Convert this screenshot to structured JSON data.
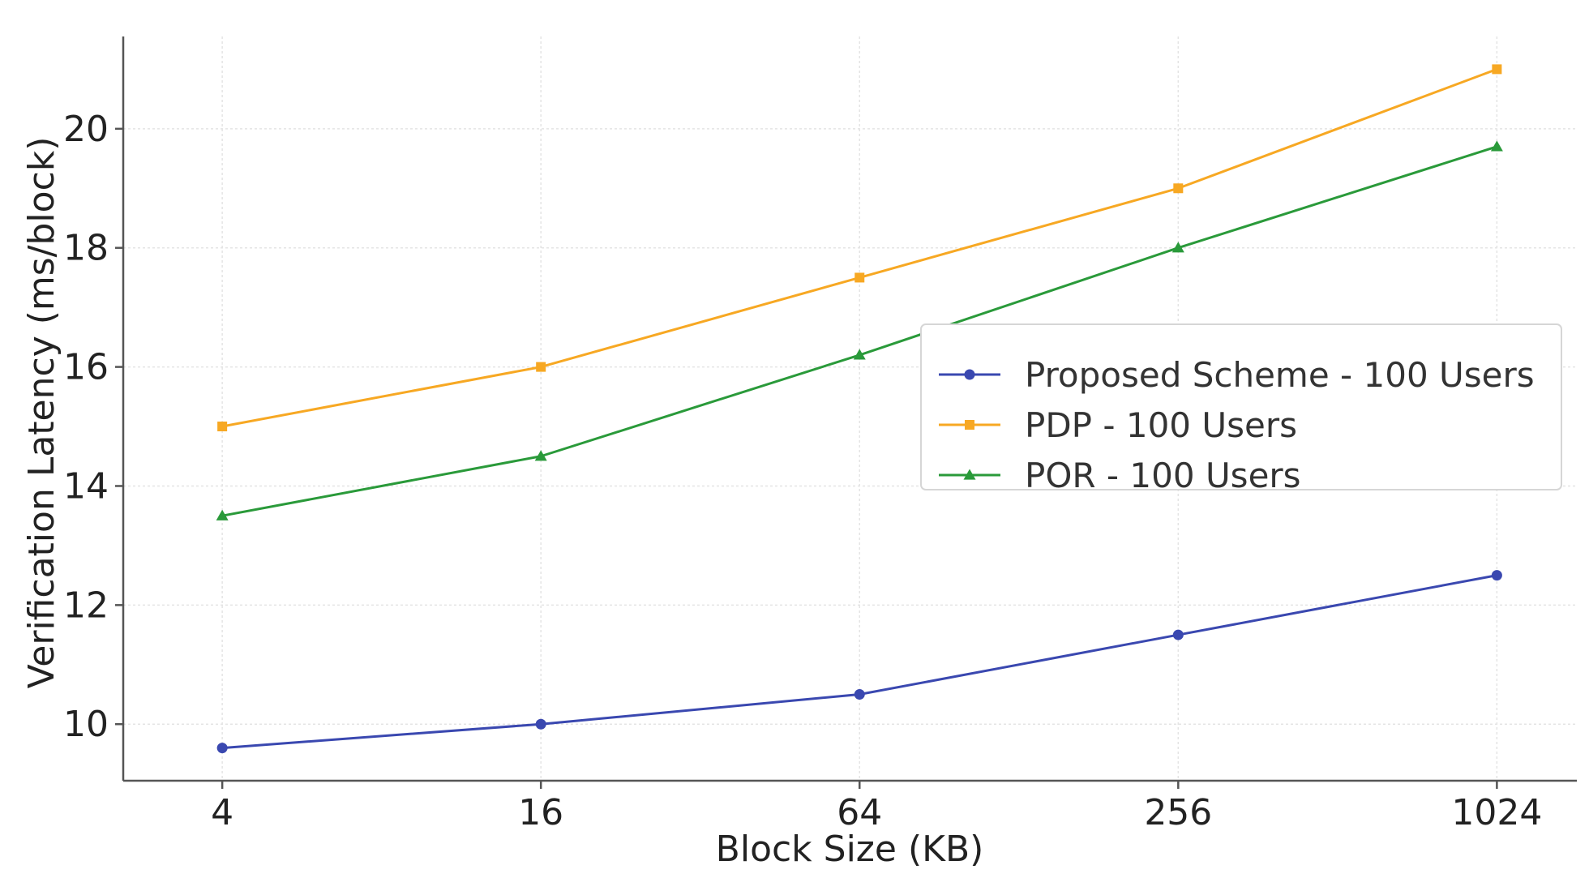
{
  "chart_data": {
    "type": "line",
    "title": "",
    "xlabel": "Block Size (KB)",
    "ylabel": "Verification Latency (ms/block)",
    "x": [
      4,
      16,
      64,
      256,
      1024
    ],
    "xticks": [
      {
        "value": 4,
        "label": "4"
      },
      {
        "value": 16,
        "label": "16"
      },
      {
        "value": 64,
        "label": "64"
      },
      {
        "value": 256,
        "label": "256"
      },
      {
        "value": 1024,
        "label": "1024"
      }
    ],
    "xscale": "log2",
    "xlim": [
      2.6,
      1450
    ],
    "yticks": [
      10,
      12,
      14,
      16,
      18,
      20
    ],
    "ylim": [
      9.05,
      21.55
    ],
    "grid": true,
    "legend_position": "center-right",
    "series": [
      {
        "name": "Proposed Scheme - 100 Users",
        "values": [
          9.6,
          10.0,
          10.5,
          11.5,
          12.5
        ],
        "color": "#3a48b0",
        "marker": "circle"
      },
      {
        "name": "PDP - 100 Users",
        "values": [
          15.0,
          16.0,
          17.5,
          19.0,
          21.0
        ],
        "color": "#f7a823",
        "marker": "square"
      },
      {
        "name": "POR - 100 Users",
        "values": [
          13.5,
          14.5,
          16.2,
          18.0,
          19.7
        ],
        "color": "#2a9a3a",
        "marker": "triangle"
      }
    ]
  }
}
